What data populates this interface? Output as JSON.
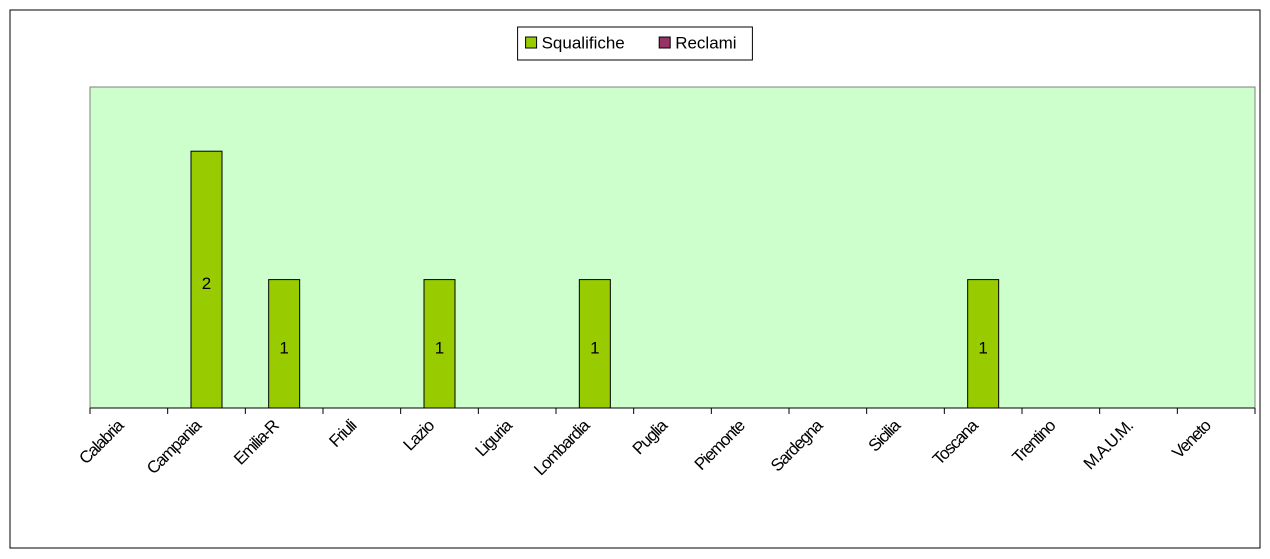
{
  "chart_data": {
    "type": "bar",
    "categories": [
      "Calabria",
      "Campania",
      "Emilia-R",
      "Friuli",
      "Lazio",
      "Liguria",
      "Lombardia",
      "Puglia",
      "Piemonte",
      "Sardegna",
      "Sicilia",
      "Toscana",
      "Trentino",
      "M.A.U.M.",
      "Veneto"
    ],
    "series": [
      {
        "name": "Squalifiche",
        "color": "#99cc00",
        "values": [
          null,
          2,
          1,
          null,
          1,
          null,
          1,
          null,
          null,
          null,
          null,
          1,
          null,
          null,
          null
        ]
      },
      {
        "name": "Reclami",
        "color": "#993366",
        "values": [
          null,
          null,
          null,
          null,
          null,
          null,
          null,
          null,
          null,
          null,
          null,
          null,
          null,
          null,
          null
        ]
      }
    ],
    "ylim": [
      0,
      2.5
    ],
    "legend": "top",
    "plot_background": "#ccffcc"
  }
}
